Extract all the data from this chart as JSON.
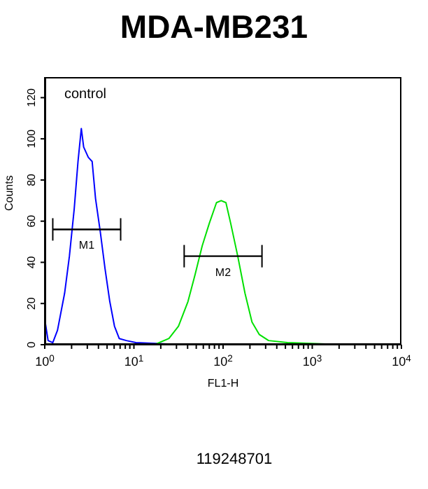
{
  "chart_data": {
    "type": "line",
    "title": "MDA-MB231",
    "xlabel": "FL1-H",
    "ylabel": "Counts",
    "log": "x",
    "xlim": [
      1,
      10000
    ],
    "ylim": [
      0,
      130
    ],
    "xticks": [
      {
        "value": 1,
        "label": "10$^{0}$"
      },
      {
        "value": 2,
        "label": null
      },
      {
        "value": 3,
        "label": null
      },
      {
        "value": 4,
        "label": null
      },
      {
        "value": 5,
        "label": null
      },
      {
        "value": 6,
        "label": null
      },
      {
        "value": 7,
        "label": null
      },
      {
        "value": 8,
        "label": null
      },
      {
        "value": 9,
        "label": null
      },
      {
        "value": 10,
        "label": "10$^{1}$"
      },
      {
        "value": 20,
        "label": null
      },
      {
        "value": 30,
        "label": null
      },
      {
        "value": 40,
        "label": null
      },
      {
        "value": 50,
        "label": null
      },
      {
        "value": 60,
        "label": null
      },
      {
        "value": 70,
        "label": null
      },
      {
        "value": 80,
        "label": null
      },
      {
        "value": 90,
        "label": null
      },
      {
        "value": 100,
        "label": "10$^{2}$"
      },
      {
        "value": 200,
        "label": null
      },
      {
        "value": 300,
        "label": null
      },
      {
        "value": 400,
        "label": null
      },
      {
        "value": 500,
        "label": null
      },
      {
        "value": 600,
        "label": null
      },
      {
        "value": 700,
        "label": null
      },
      {
        "value": 800,
        "label": null
      },
      {
        "value": 900,
        "label": null
      },
      {
        "value": 1000,
        "label": "10$^{3}$"
      },
      {
        "value": 2000,
        "label": null
      },
      {
        "value": 3000,
        "label": null
      },
      {
        "value": 4000,
        "label": null
      },
      {
        "value": 5000,
        "label": null
      },
      {
        "value": 6000,
        "label": null
      },
      {
        "value": 7000,
        "label": null
      },
      {
        "value": 8000,
        "label": null
      },
      {
        "value": 9000,
        "label": null
      },
      {
        "value": 10000,
        "label": "10$^{4}$"
      }
    ],
    "yticks": [
      0,
      20,
      40,
      60,
      80,
      100,
      120
    ],
    "grid": false,
    "legend": false,
    "marker": "none",
    "line_style": "solid",
    "series": [
      {
        "type": "line",
        "color": "#0000ff",
        "x": [
          1.02,
          1.09,
          1.23,
          1.39,
          1.67,
          1.89,
          2.14,
          2.36,
          2.57,
          2.73,
          3.08,
          3.4,
          3.71,
          4.19,
          4.74,
          5.36,
          6.05,
          6.84,
          8.22,
          10.5,
          35,
          175,
          10000
        ],
        "values": [
          10,
          2,
          1,
          7,
          25,
          43,
          66,
          89,
          105,
          96,
          91,
          89,
          71,
          55,
          37,
          21,
          9,
          3,
          2,
          1,
          0,
          0,
          0
        ]
      },
      {
        "type": "line",
        "color": "#00e000",
        "x": [
          1.35,
          17,
          24.7,
          31.6,
          40.4,
          48.5,
          58.3,
          70.1,
          84.3,
          95.2,
          107.6,
          121.6,
          146,
          176,
          211,
          254,
          324,
          525,
          2290,
          10000
        ],
        "values": [
          0,
          0,
          3,
          9,
          21,
          34,
          48,
          59,
          69,
          70,
          69,
          59,
          43,
          25,
          11,
          5,
          2,
          1,
          0,
          0
        ]
      },
      {
        "type": "line",
        "name": "M1",
        "color": "#000000",
        "x": [
          1.23,
          7.1
        ],
        "values": [
          56,
          56
        ]
      },
      {
        "type": "line",
        "name": "M2",
        "color": "#000000",
        "x": [
          36.6,
          273
        ],
        "values": [
          43,
          43
        ]
      }
    ],
    "annotations": [
      "control",
      "119248701"
    ]
  }
}
